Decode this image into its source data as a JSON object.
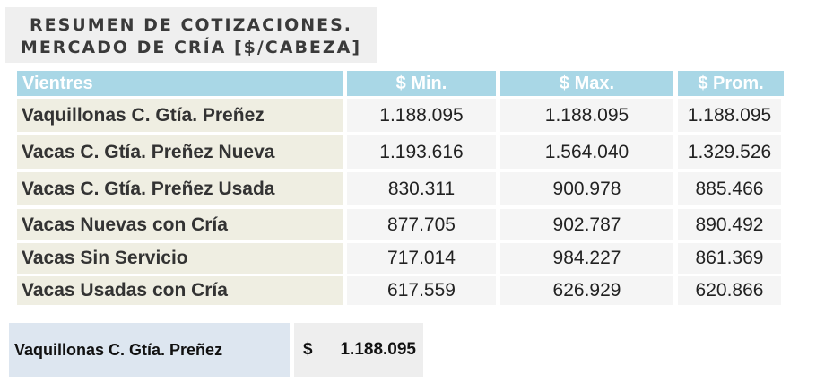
{
  "title": {
    "line1": "RESUMEN DE COTIZACIONES.",
    "line2": "MERCADO DE CRÍA [$/CABEZA]"
  },
  "table": {
    "headers": [
      "Vientres",
      "$ Min.",
      "$ Max.",
      "$ Prom."
    ],
    "rows": [
      {
        "label": "Vaquillonas C. Gtía. Preñez",
        "min": "1.188.095",
        "max": "1.188.095",
        "prom": "1.188.095"
      },
      {
        "label": "Vacas C. Gtía. Preñez Nueva",
        "min": "1.193.616",
        "max": "1.564.040",
        "prom": "1.329.526"
      },
      {
        "label": "Vacas C. Gtía. Preñez Usada",
        "min": "830.311",
        "max": "900.978",
        "prom": "885.466"
      },
      {
        "label": "Vacas Nuevas con Cría",
        "min": "877.705",
        "max": "902.787",
        "prom": "890.492"
      },
      {
        "label": "Vacas Sin Servicio",
        "min": "717.014",
        "max": "984.227",
        "prom": "861.369"
      },
      {
        "label": "Vacas Usadas con Cría",
        "min": "617.559",
        "max": "626.929",
        "prom": "620.866"
      }
    ]
  },
  "summary": {
    "label": "Vaquillonas C. Gtía. Preñez",
    "currency": "$",
    "value": "1.188.095"
  }
}
